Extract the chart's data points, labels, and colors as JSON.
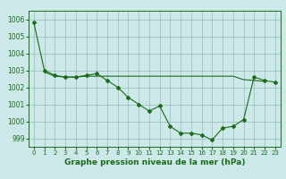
{
  "title": "Graphe pression niveau de la mer (hPa)",
  "bg_color": "#cce8e8",
  "line_color": "#1a6b1a",
  "grid_color": "#99bbbb",
  "x_min": -0.5,
  "x_max": 23.5,
  "y_min": 998.5,
  "y_max": 1006.5,
  "yticks": [
    999,
    1000,
    1001,
    1002,
    1003,
    1004,
    1005,
    1006
  ],
  "xticks": [
    0,
    1,
    2,
    3,
    4,
    5,
    6,
    7,
    8,
    9,
    10,
    11,
    12,
    13,
    14,
    15,
    16,
    17,
    18,
    19,
    20,
    21,
    22,
    23
  ],
  "main_series": [
    1005.8,
    1003.0,
    1002.7,
    1002.6,
    1002.6,
    1002.7,
    1002.8,
    1002.4,
    1002.0,
    1001.4,
    1001.0,
    1000.6,
    1000.9,
    999.7,
    999.3,
    999.3,
    999.2,
    998.9,
    999.6,
    999.7,
    1000.1,
    1002.6,
    1002.4,
    1002.3
  ],
  "flat_series_x": [
    1,
    2,
    3,
    4,
    5,
    6,
    7,
    8,
    9,
    10,
    11,
    12,
    13,
    14,
    15,
    16,
    17,
    18,
    19,
    20,
    21,
    22
  ],
  "flat_series_y": [
    1002.9,
    1002.65,
    1002.6,
    1002.6,
    1002.65,
    1002.65,
    1002.65,
    1002.65,
    1002.65,
    1002.65,
    1002.65,
    1002.65,
    1002.65,
    1002.65,
    1002.65,
    1002.65,
    1002.65,
    1002.65,
    1002.65,
    1002.45,
    1002.4,
    1002.35
  ],
  "ylabel_fontsize": 5.5,
  "xlabel_fontsize": 6.5,
  "tick_fontsize": 5.0
}
